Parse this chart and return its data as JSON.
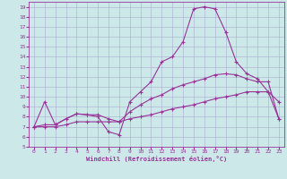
{
  "xlabel": "Windchill (Refroidissement éolien,°C)",
  "bg_color": "#cce8e8",
  "line_color": "#993399",
  "grid_color": "#aaaacc",
  "xlim": [
    -0.5,
    23.5
  ],
  "ylim": [
    5,
    19.5
  ],
  "xticks": [
    0,
    1,
    2,
    3,
    4,
    5,
    6,
    7,
    8,
    9,
    10,
    11,
    12,
    13,
    14,
    15,
    16,
    17,
    18,
    19,
    20,
    21,
    22,
    23
  ],
  "yticks": [
    5,
    6,
    7,
    8,
    9,
    10,
    11,
    12,
    13,
    14,
    15,
    16,
    17,
    18,
    19
  ],
  "line1_x": [
    0,
    1,
    2,
    3,
    4,
    5,
    6,
    7,
    8,
    9,
    10,
    11,
    12,
    13,
    14,
    15,
    16,
    17,
    18,
    19,
    20,
    21,
    22,
    23
  ],
  "line1_y": [
    7.0,
    9.5,
    7.2,
    7.8,
    8.3,
    8.2,
    8.0,
    6.5,
    6.2,
    9.5,
    10.5,
    11.5,
    13.5,
    14.0,
    15.5,
    18.8,
    19.0,
    18.8,
    16.5,
    13.5,
    12.3,
    11.8,
    10.5,
    9.5
  ],
  "line2_x": [
    0,
    1,
    2,
    3,
    4,
    5,
    6,
    7,
    8,
    9,
    10,
    11,
    12,
    13,
    14,
    15,
    16,
    17,
    18,
    19,
    20,
    21,
    22,
    23
  ],
  "line2_y": [
    7.0,
    7.2,
    7.2,
    7.8,
    8.3,
    8.2,
    8.2,
    7.8,
    7.5,
    8.5,
    9.2,
    9.8,
    10.2,
    10.8,
    11.2,
    11.5,
    11.8,
    12.2,
    12.3,
    12.2,
    11.8,
    11.5,
    11.5,
    7.8
  ],
  "line3_x": [
    0,
    1,
    2,
    3,
    4,
    5,
    6,
    7,
    8,
    9,
    10,
    11,
    12,
    13,
    14,
    15,
    16,
    17,
    18,
    19,
    20,
    21,
    22,
    23
  ],
  "line3_y": [
    7.0,
    7.0,
    7.0,
    7.2,
    7.5,
    7.5,
    7.5,
    7.5,
    7.5,
    7.8,
    8.0,
    8.2,
    8.5,
    8.8,
    9.0,
    9.2,
    9.5,
    9.8,
    10.0,
    10.2,
    10.5,
    10.5,
    10.5,
    7.8
  ]
}
